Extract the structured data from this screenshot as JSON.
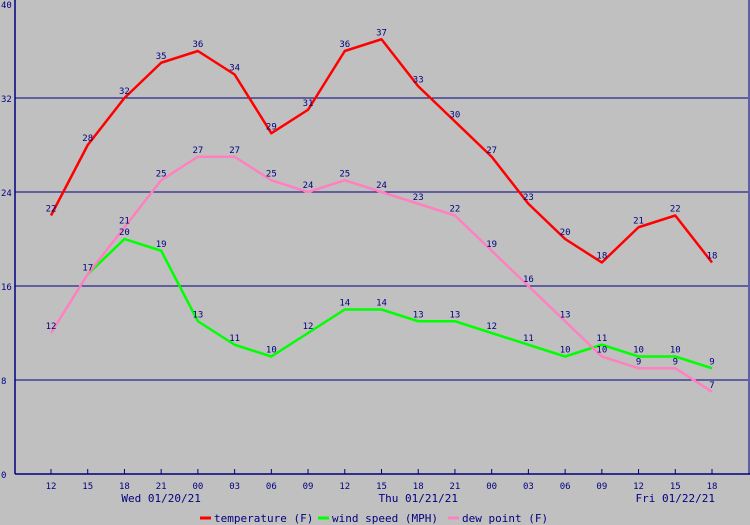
{
  "chart_data": {
    "type": "line",
    "title": "",
    "xlabel": "",
    "ylabel": "",
    "ylim": [
      0,
      40
    ],
    "yticks": [
      0,
      8,
      16,
      24,
      32,
      40
    ],
    "grid": true,
    "x": [
      "12",
      "15",
      "18",
      "21",
      "00",
      "03",
      "06",
      "09",
      "12",
      "15",
      "18",
      "21",
      "00",
      "03",
      "06",
      "09",
      "12",
      "15",
      "18"
    ],
    "day_labels": [
      {
        "label": "Wed 01/20/21",
        "at_index": 3
      },
      {
        "label": "Thu 01/21/21",
        "at_index": 10
      },
      {
        "label": "Fri 01/22/21",
        "at_index": 17
      }
    ],
    "legend_position": "bottom",
    "series": [
      {
        "name": "temperature (F)",
        "color": "#ff0000",
        "values": [
          22,
          28,
          32,
          35,
          36,
          34,
          29,
          31,
          36,
          37,
          33,
          30,
          27,
          23,
          20,
          18,
          21,
          22,
          18
        ],
        "show_labels": true
      },
      {
        "name": "wind speed (MPH)",
        "color": "#00ff00",
        "values": [
          null,
          17,
          20,
          19,
          13,
          11,
          10,
          12,
          14,
          14,
          13,
          13,
          12,
          11,
          10,
          11,
          10,
          10,
          9
        ],
        "show_labels": true
      },
      {
        "name": "dew point (F)",
        "color": "#ff80c0",
        "values": [
          12,
          17,
          21,
          25,
          27,
          27,
          25,
          24,
          25,
          24,
          23,
          22,
          19,
          16,
          13,
          10,
          9,
          9,
          7
        ],
        "show_labels": [
          true,
          false,
          true,
          true,
          true,
          true,
          true,
          true,
          true,
          true,
          true,
          true,
          true,
          true,
          true,
          true,
          true,
          true,
          true
        ]
      }
    ]
  }
}
